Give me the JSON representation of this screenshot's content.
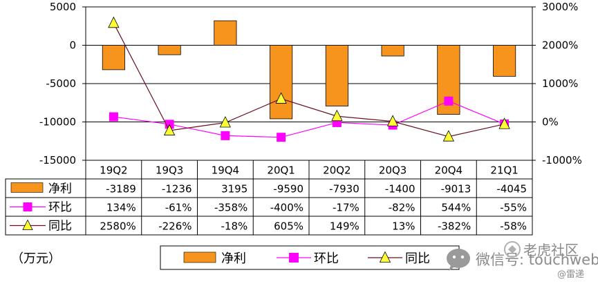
{
  "chart_data": {
    "type": "bar+line",
    "categories": [
      "19Q2",
      "19Q3",
      "19Q4",
      "20Q1",
      "20Q2",
      "20Q3",
      "20Q4",
      "21Q1"
    ],
    "unit_label": "（万元）",
    "y_left": {
      "ticks": [
        "5000",
        "0",
        "-5000",
        "-10000",
        "-15000"
      ],
      "min": -15000,
      "max": 5000
    },
    "y_right": {
      "ticks": [
        "3000%",
        "2000%",
        "1000%",
        "0%",
        "-1000%"
      ],
      "min": -1000,
      "max": 3000
    },
    "grid": true,
    "series": [
      {
        "name": "净利",
        "type": "bar",
        "axis": "left",
        "color": "#f7941d",
        "values": [
          -3189,
          -1236,
          3195,
          -9590,
          -7930,
          -1400,
          -9013,
          -4045
        ],
        "labels": [
          "-3189",
          "-1236",
          "3195",
          "-9590",
          "-7930",
          "-1400",
          "-9013",
          "-4045"
        ]
      },
      {
        "name": "环比",
        "type": "line",
        "axis": "right",
        "color": "#ff00ff",
        "marker": "square",
        "values": [
          134,
          -61,
          -358,
          -400,
          -17,
          -82,
          544,
          -55
        ],
        "labels": [
          "134%",
          "-61%",
          "-358%",
          "-400%",
          "-17%",
          "-82%",
          "544%",
          "-55%"
        ]
      },
      {
        "name": "同比",
        "type": "line",
        "axis": "right",
        "color": "#6b0f1f",
        "marker": "triangle",
        "marker_color": "#ffff33",
        "values": [
          2580,
          -226,
          -18,
          605,
          149,
          13,
          -382,
          -58
        ],
        "labels": [
          "2580%",
          "-226%",
          "-18%",
          "605%",
          "149%",
          "13%",
          "-382%",
          "-58%"
        ]
      }
    ],
    "legend_position": "bottom"
  },
  "watermark": {
    "wechat": "微信号: touchweb",
    "community": "老虎社区",
    "credit": "@雷递"
  }
}
